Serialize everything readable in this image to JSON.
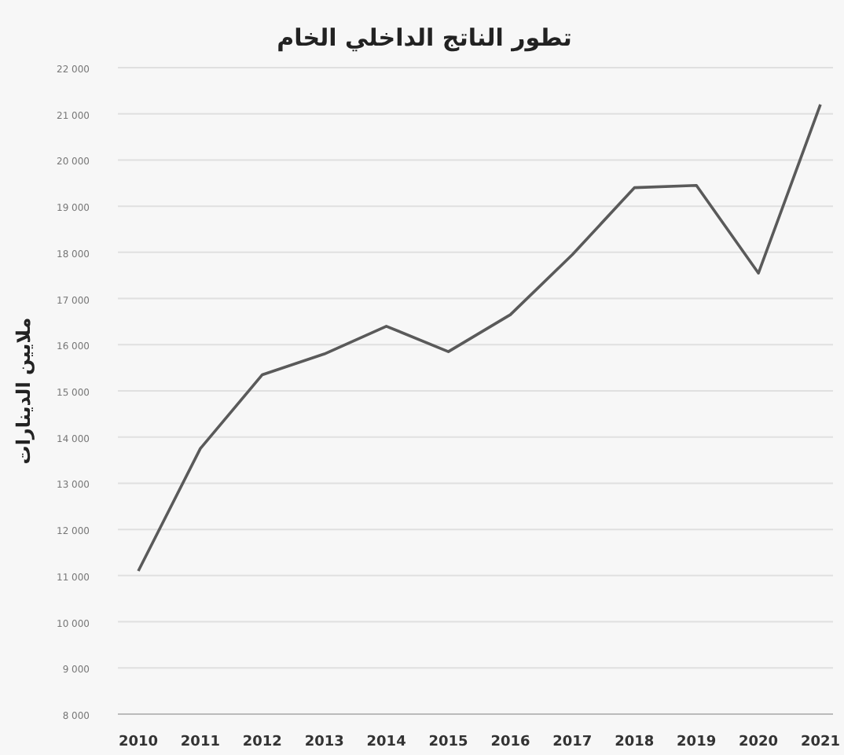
{
  "chart_data": {
    "type": "line",
    "title": "تطور الناتج الداخلي الخام",
    "ylabel": "ملايين الدينارات",
    "categories": [
      "2010",
      "2011",
      "2012",
      "2013",
      "2014",
      "2015",
      "2016",
      "2017",
      "2018",
      "2019",
      "2020",
      "2021"
    ],
    "series": [
      {
        "color": "#5a5a5a",
        "values": [
          11100,
          13750,
          15350,
          15800,
          16400,
          15850,
          16650,
          17950,
          19400,
          19450,
          17550,
          21200
        ]
      }
    ],
    "ylim": [
      8000,
      22000
    ],
    "yticks": [
      {
        "value": 8000,
        "label": "8 000"
      },
      {
        "value": 9000,
        "label": "9 000"
      },
      {
        "value": 10000,
        "label": "10 000"
      },
      {
        "value": 11000,
        "label": "11 000"
      },
      {
        "value": 12000,
        "label": "12 000"
      },
      {
        "value": 13000,
        "label": "13 000"
      },
      {
        "value": 14000,
        "label": "14 000"
      },
      {
        "value": 15000,
        "label": "15 000"
      },
      {
        "value": 16000,
        "label": "16 000"
      },
      {
        "value": 17000,
        "label": "17 000"
      },
      {
        "value": 18000,
        "label": "18 000"
      },
      {
        "value": 19000,
        "label": "19 000"
      },
      {
        "value": 20000,
        "label": "20 000"
      },
      {
        "value": 21000,
        "label": "21 000"
      },
      {
        "value": 22000,
        "label": "22 000"
      }
    ],
    "grid": "y"
  }
}
